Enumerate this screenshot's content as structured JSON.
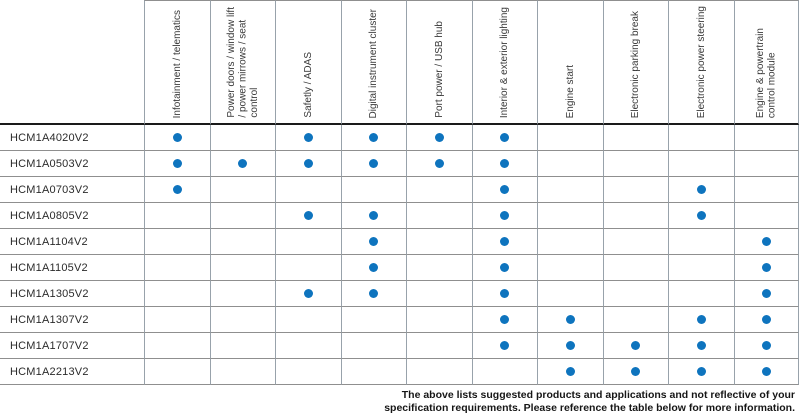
{
  "table": {
    "columns": [
      "Infotainment / telematics",
      "Power doors / window lift\n/ power mirrows / seat\ncontrol",
      "Safetly / ADAS",
      "Digital instrument cluster",
      "Port power / USB hub",
      "Interior & exterior lighting",
      "Engine start",
      "Electronic parking break",
      "Electronic power steering",
      "Engine & powertrain\ncontrol module"
    ],
    "rows": [
      {
        "part": "HCM1A4020V2",
        "dots": [
          1,
          0,
          1,
          1,
          1,
          1,
          0,
          0,
          0,
          0
        ]
      },
      {
        "part": "HCM1A0503V2",
        "dots": [
          1,
          1,
          1,
          1,
          1,
          1,
          0,
          0,
          0,
          0
        ]
      },
      {
        "part": "HCM1A0703V2",
        "dots": [
          1,
          0,
          0,
          0,
          0,
          1,
          0,
          0,
          1,
          0
        ]
      },
      {
        "part": "HCM1A0805V2",
        "dots": [
          0,
          0,
          1,
          1,
          0,
          1,
          0,
          0,
          1,
          0
        ]
      },
      {
        "part": "HCM1A1104V2",
        "dots": [
          0,
          0,
          0,
          1,
          0,
          1,
          0,
          0,
          0,
          1
        ]
      },
      {
        "part": "HCM1A1105V2",
        "dots": [
          0,
          0,
          0,
          1,
          0,
          1,
          0,
          0,
          0,
          1
        ]
      },
      {
        "part": "HCM1A1305V2",
        "dots": [
          0,
          0,
          1,
          1,
          0,
          1,
          0,
          0,
          0,
          1
        ]
      },
      {
        "part": "HCM1A1307V2",
        "dots": [
          0,
          0,
          0,
          0,
          0,
          1,
          1,
          0,
          1,
          1
        ]
      },
      {
        "part": "HCM1A1707V2",
        "dots": [
          0,
          0,
          0,
          0,
          0,
          1,
          1,
          1,
          1,
          1
        ]
      },
      {
        "part": "HCM1A2213V2",
        "dots": [
          0,
          0,
          0,
          0,
          0,
          0,
          1,
          1,
          1,
          1
        ]
      }
    ],
    "dot_marker": "filled-circle-icon"
  },
  "footer": {
    "line1": "The above lists suggested products and applications and not reflective of your",
    "line2": "specification requirements. Please reference the table below for more information."
  },
  "colors": {
    "dot_blue": "#0e74be",
    "vertical_grid": "#98a2ab",
    "horizontal_grid": "#8f8f8f",
    "header_rule": "#1a1a1a"
  }
}
